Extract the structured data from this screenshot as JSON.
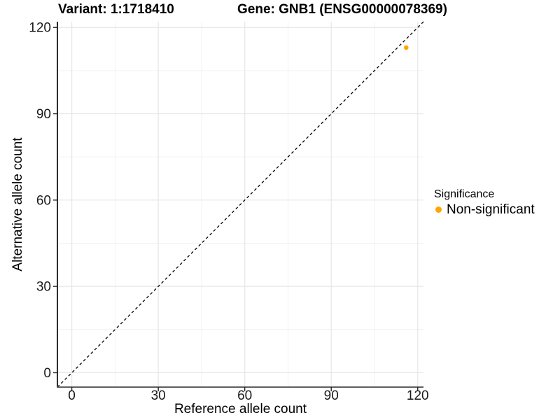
{
  "chart_data": {
    "type": "scatter",
    "titles": {
      "variant": "Variant: 1:1718410",
      "gene": "Gene: GNB1 (ENSG00000078369)"
    },
    "xlabel": "Reference allele count",
    "ylabel": "Alternative allele count",
    "xlim": [
      -5,
      122
    ],
    "ylim": [
      -5,
      122
    ],
    "x_ticks": [
      0,
      30,
      60,
      90,
      120
    ],
    "y_ticks": [
      0,
      30,
      60,
      90,
      120
    ],
    "x_minor_ticks": [
      15,
      45,
      75,
      105
    ],
    "y_minor_ticks": [
      15,
      45,
      75,
      105
    ],
    "grid": true,
    "reference_line": {
      "type": "identity",
      "slope": 1,
      "intercept": 0,
      "style": "dashed",
      "color": "#000000"
    },
    "points": [
      {
        "x": 116,
        "y": 113,
        "series": "Non-significant"
      }
    ],
    "legend": {
      "title": "Significance",
      "position": "right",
      "entries": [
        {
          "label": "Non-significant",
          "color": "#FFA500"
        }
      ]
    }
  },
  "colors": {
    "background": "#FFFFFF",
    "grid_major": "#E6E6E6",
    "grid_minor": "#F2F2F2",
    "axis_left": "#0A0A0A",
    "axis_bottom": "#5F5F5F",
    "tick_mark": "#222222",
    "tick_label": "#1A1A1A",
    "point": "#FFA500"
  }
}
